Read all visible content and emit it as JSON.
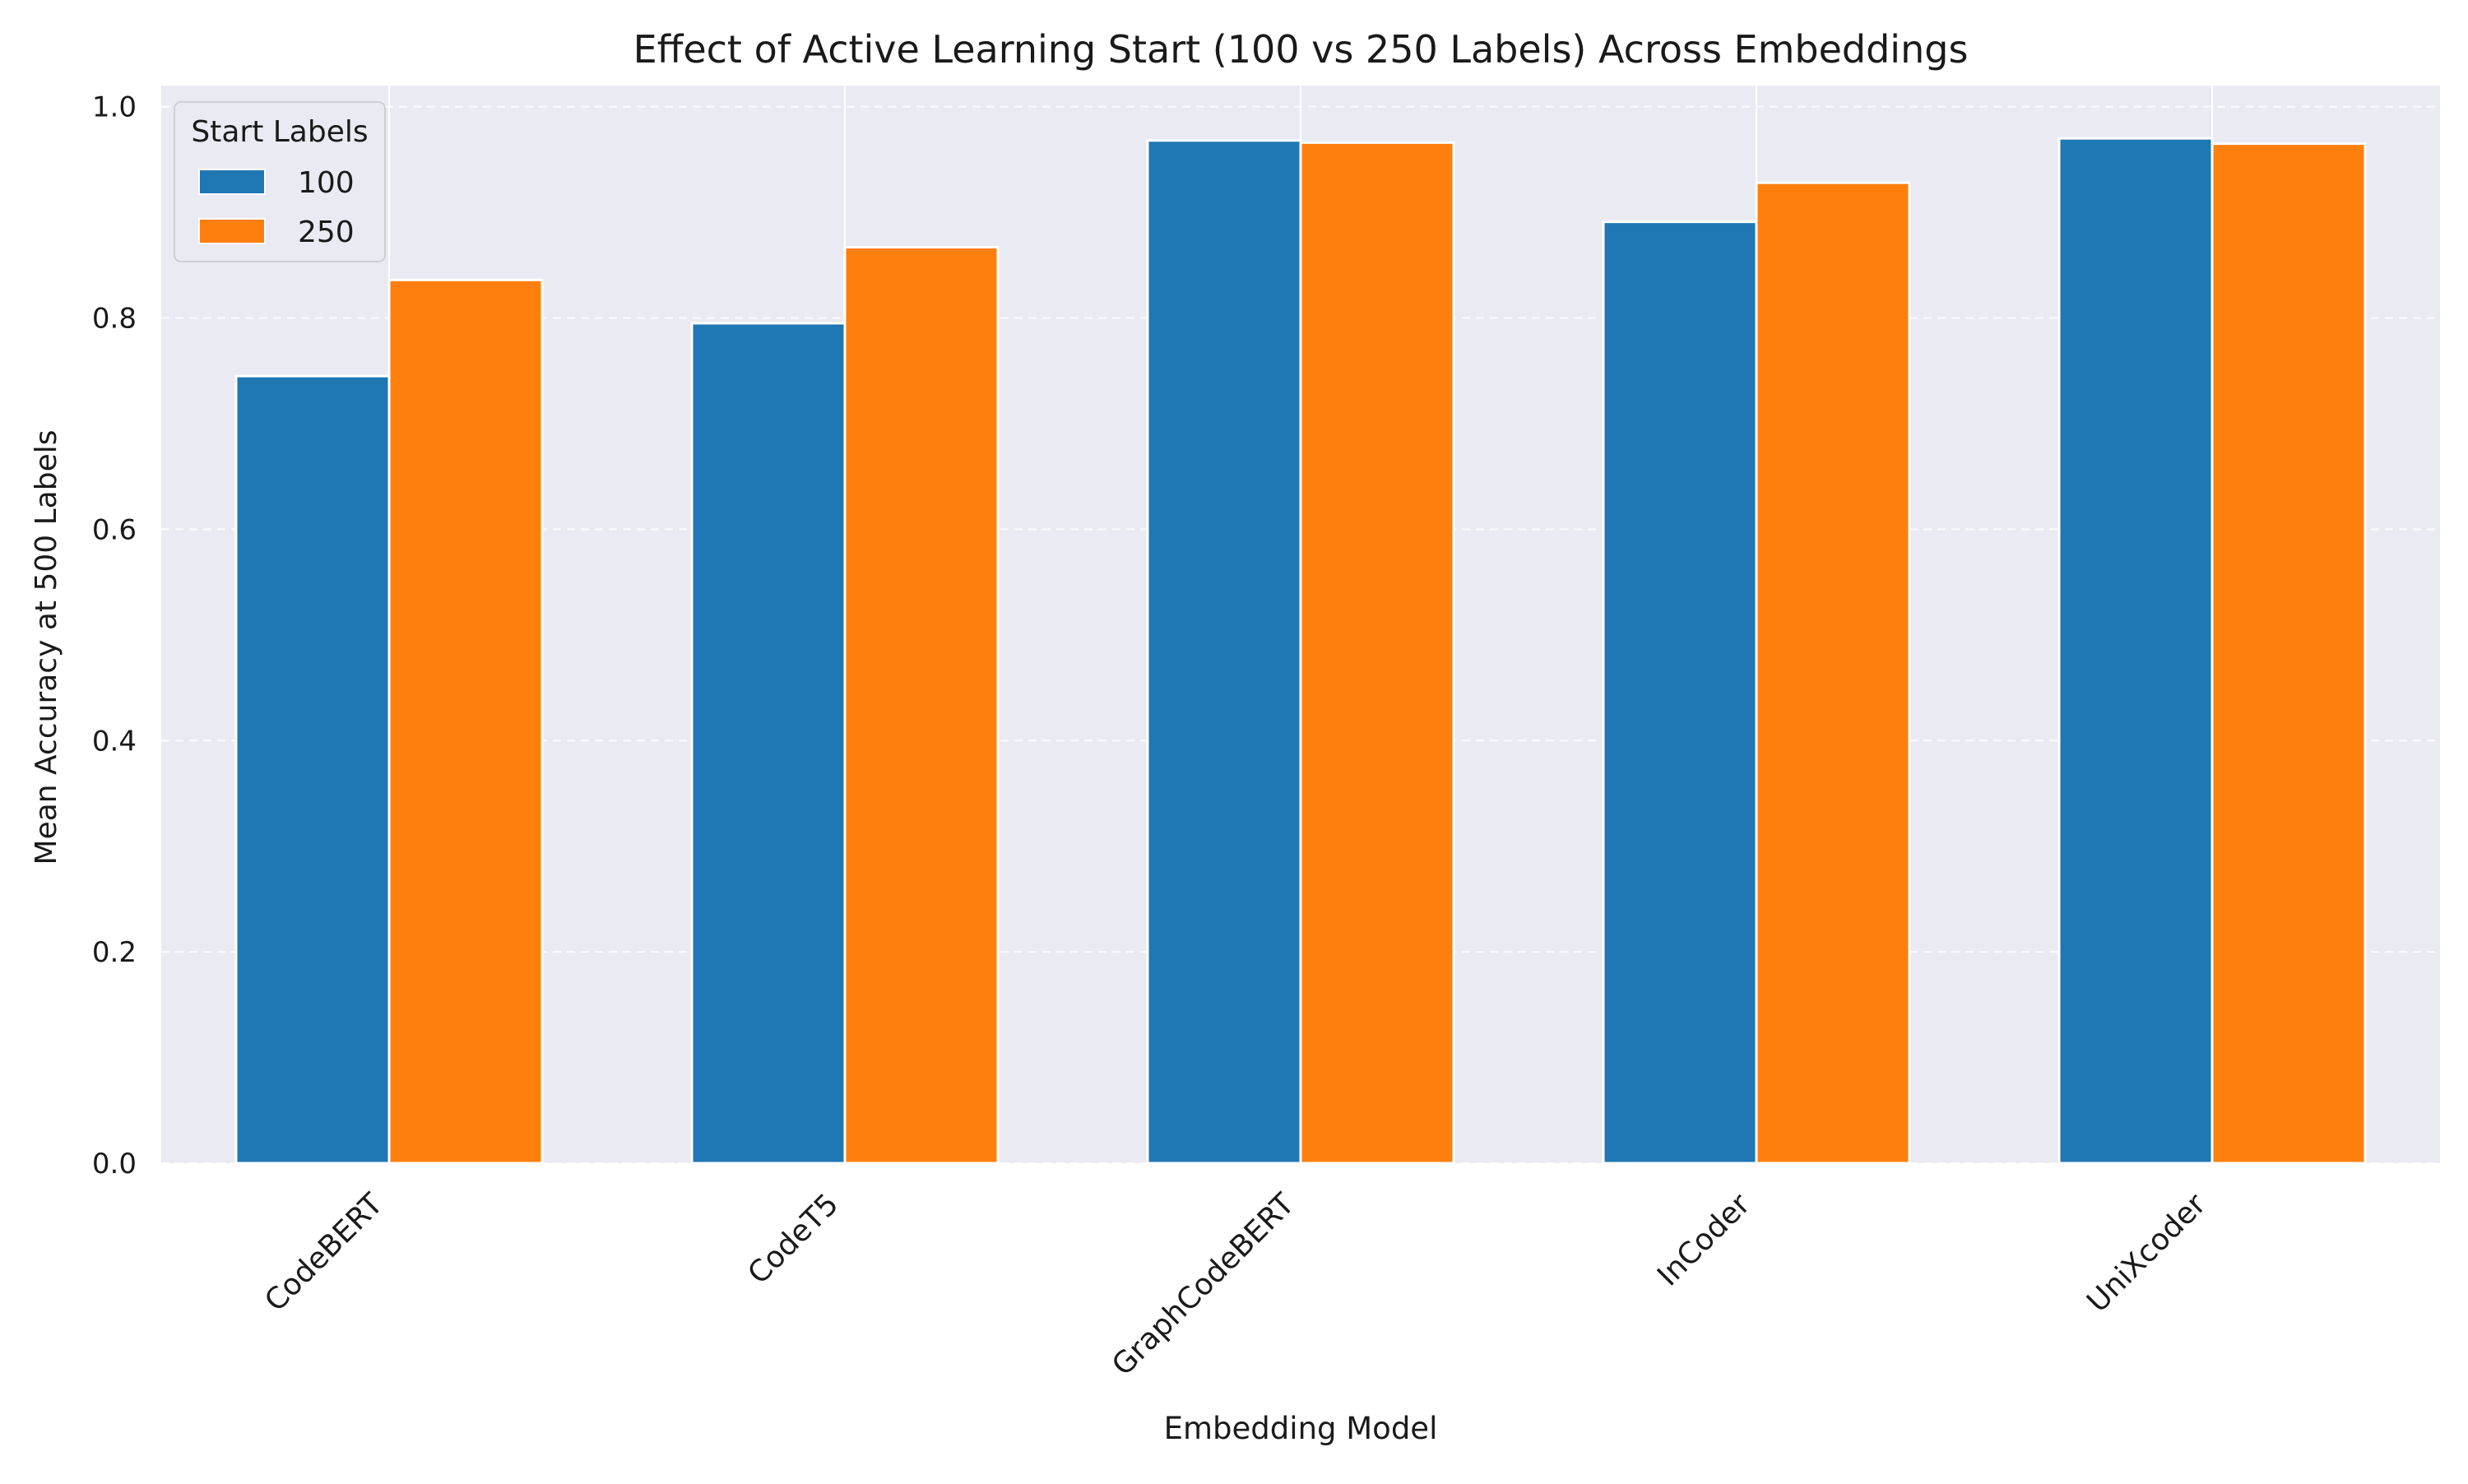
{
  "chart_data": {
    "type": "bar",
    "title": "Effect of Active Learning Start (100 vs 250 Labels) Across Embeddings",
    "xlabel": "Embedding Model",
    "ylabel": "Mean Accuracy at 500 Labels",
    "categories": [
      "CodeBERT",
      "CodeT5",
      "GraphCodeBERT",
      "InCoder",
      "UniXcoder"
    ],
    "series": [
      {
        "name": "100",
        "color": "#1f77b4",
        "values": [
          0.745,
          0.795,
          0.968,
          0.891,
          0.97
        ]
      },
      {
        "name": "250",
        "color": "#ff7f0e",
        "values": [
          0.836,
          0.867,
          0.966,
          0.928,
          0.965
        ]
      }
    ],
    "ylim": [
      0,
      1.02
    ],
    "yticks": [
      "0.0",
      "0.2",
      "0.4",
      "0.6",
      "0.8",
      "1.0"
    ],
    "legend": {
      "title": "Start Labels",
      "placement": "top-left"
    },
    "grid": true,
    "background": "#eaeaf2"
  }
}
